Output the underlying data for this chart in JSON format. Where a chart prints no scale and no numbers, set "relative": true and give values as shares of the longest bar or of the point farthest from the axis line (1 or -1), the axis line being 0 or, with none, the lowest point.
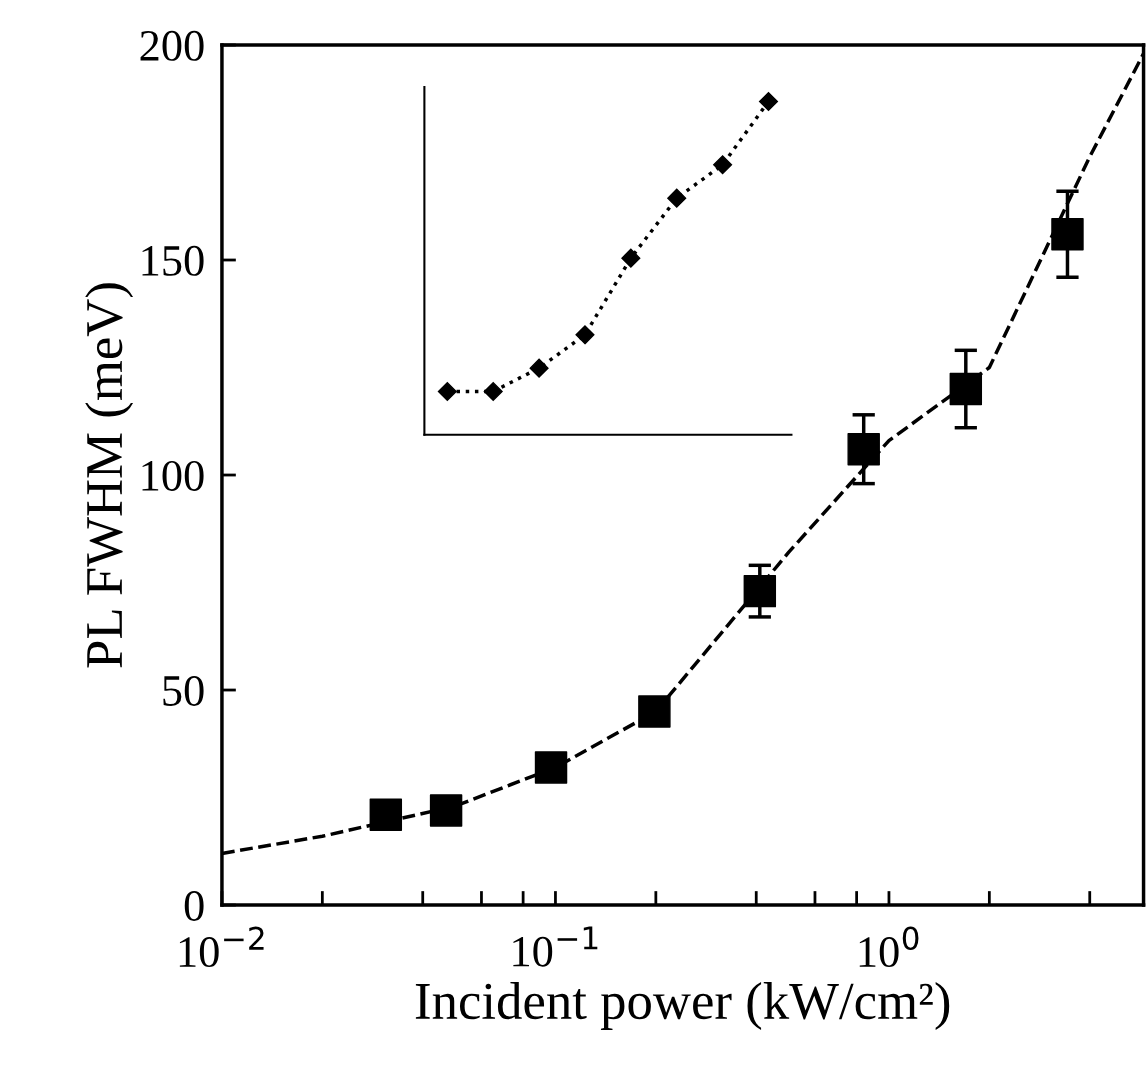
{
  "chart_data": [
    {
      "type": "scatter",
      "xlabel": "Incident power (kW/cm²)",
      "ylabel": "PL FWHM (meV)",
      "log": "x",
      "xlim": [
        0.01,
        5.8
      ],
      "xticks": [
        {
          "value": 0.01,
          "label": "10$^{−2}$"
        },
        {
          "value": 0.02,
          "label": null
        },
        {
          "value": 0.04,
          "label": null
        },
        {
          "value": 0.06,
          "label": null
        },
        {
          "value": 0.08,
          "label": null
        },
        {
          "value": 0.1,
          "label": "10$^{−1}$"
        },
        {
          "value": 0.2,
          "label": null
        },
        {
          "value": 0.4,
          "label": null
        },
        {
          "value": 0.6,
          "label": null
        },
        {
          "value": 0.8,
          "label": null
        },
        {
          "value": 1,
          "label": "10$^{0}$"
        },
        {
          "value": 2,
          "label": null
        },
        {
          "value": 4,
          "label": null
        }
      ],
      "ylim": [
        0,
        200
      ],
      "yticks": [
        0,
        50,
        100,
        150,
        200
      ],
      "grid": false,
      "series": [
        {
          "type": "scatter",
          "color": "#000000",
          "marker": "square",
          "x": [
            0.031,
            0.047,
            0.097,
            0.198,
            0.41,
            0.84,
            1.7,
            3.43
          ],
          "values": [
            21,
            22,
            32,
            45,
            73,
            106,
            120,
            156
          ],
          "errors": [
            null,
            null,
            null,
            null,
            6,
            8,
            9,
            10
          ]
        },
        {
          "type": "line",
          "color": "#000000",
          "line_style": "dashed",
          "x": [
            0.01,
            0.02,
            0.05,
            0.1,
            0.2,
            0.5,
            1,
            2,
            4,
            5.8
          ],
          "values": [
            12,
            16,
            23,
            32,
            45,
            82,
            108,
            125,
            174,
            198
          ]
        }
      ]
    },
    {
      "type": "line",
      "relative": true,
      "categories": [
        null,
        null,
        null,
        null,
        null,
        null,
        null,
        null
      ],
      "series": [
        {
          "color": "#000000",
          "marker": "diamond",
          "line_style": "dotted",
          "values": [
            0.13,
            0.13,
            0.2,
            0.3,
            0.53,
            0.71,
            0.81,
            1
          ]
        }
      ]
    }
  ]
}
